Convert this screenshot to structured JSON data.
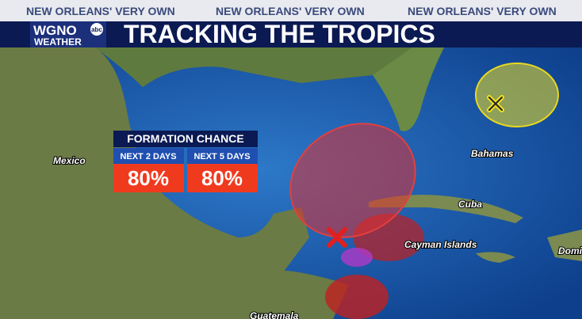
{
  "header": {
    "taglines": [
      "NEW ORLEANS' VERY OWN",
      "NEW ORLEANS' VERY OWN",
      "NEW ORLEANS' VERY OWN"
    ],
    "logo": {
      "station": "WGNO",
      "network": "abc",
      "brand": "WEATHER"
    },
    "title": "TRACKING THE TROPICS"
  },
  "formation_chance": {
    "title": "FORMATION CHANCE",
    "columns": [
      {
        "label": "NEXT 2 DAYS",
        "value": "80%"
      },
      {
        "label": "NEXT 5 DAYS",
        "value": "80%"
      }
    ]
  },
  "map_labels": [
    "Mexico",
    "Bahamas",
    "Cuba",
    "Cayman Islands",
    "Domi",
    "Guatemala"
  ]
}
